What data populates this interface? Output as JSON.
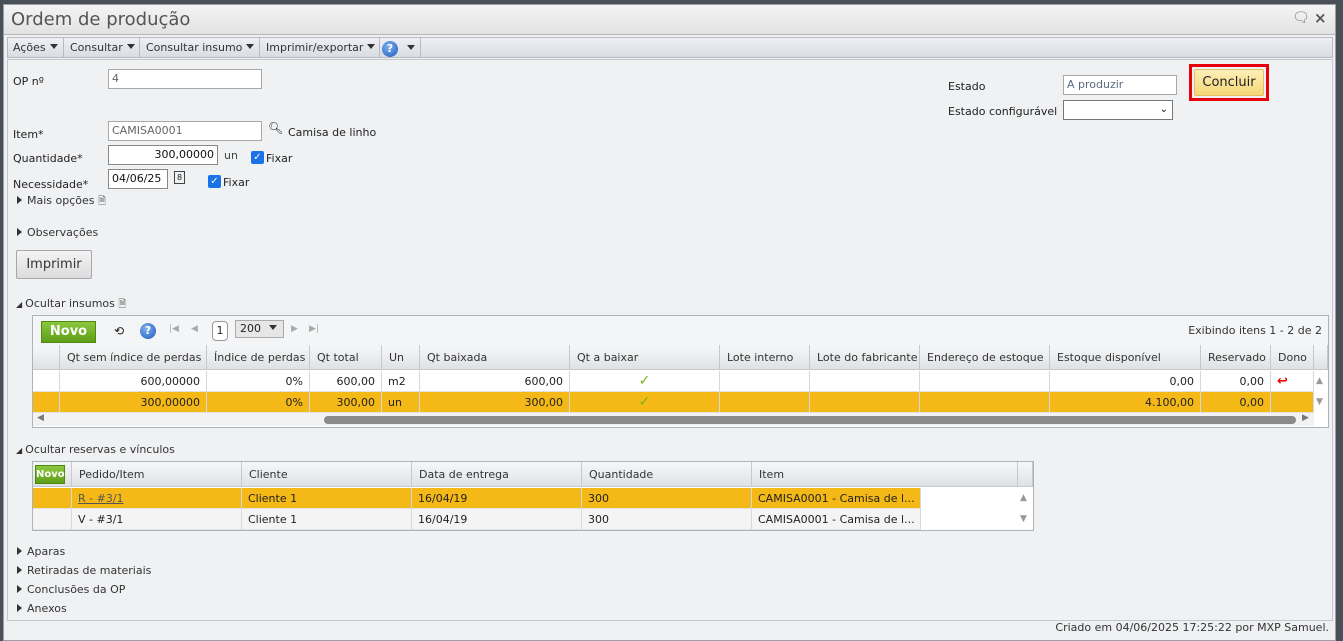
{
  "window": {
    "title": "Ordem de produção"
  },
  "menu": [
    "Ações",
    "Consultar",
    "Consultar insumo",
    "Imprimir/exportar"
  ],
  "form": {
    "op_label": "OP nº",
    "op_value": "4",
    "item_label": "Item*",
    "item_value": "CAMISA0001",
    "item_desc": "Camisa de linho",
    "qty_label": "Quantidade*",
    "qty_value": "300,00000",
    "qty_unit": "un",
    "fix1": "Fixar",
    "need_label": "Necessidade*",
    "need_value": "04/06/25",
    "fix2": "Fixar",
    "more": "Mais opções",
    "obs": "Observações",
    "print": "Imprimir",
    "state_label": "Estado",
    "state_value": "A produzir",
    "cfg_label": "Estado configurável",
    "cfg_value": "",
    "conclude": "Concluir"
  },
  "insumos": {
    "section": "Ocultar insumos",
    "new": "Novo",
    "page": "1",
    "page_size": "200",
    "status": "Exibindo itens 1 - 2 de 2",
    "columns": [
      "Qt sem índice de perdas",
      "Índice de perdas",
      "Qt total",
      "Un",
      "Qt baixada",
      "Qt a baixar",
      "Lote interno",
      "Lote do fabricante",
      "Endereço de estoque",
      "Estoque disponível",
      "Reservado",
      "Dono"
    ],
    "rows": [
      [
        "600,00000",
        "0%",
        "600,00",
        "m2",
        "600,00",
        "✓",
        "",
        "",
        "",
        "0,00",
        "0,00",
        "↩"
      ],
      [
        "300,00000",
        "0%",
        "300,00",
        "un",
        "300,00",
        "✓",
        "",
        "",
        "",
        "4.100,00",
        "0,00",
        ""
      ]
    ],
    "selected_row": 1
  },
  "reservas": {
    "section": "Ocultar reservas e vínculos",
    "new": "Novo",
    "columns": [
      "Pedido/Item",
      "Cliente",
      "Data de entrega",
      "Quantidade",
      "Item"
    ],
    "rows": [
      [
        "R - #3/1",
        "Cliente 1",
        "16/04/19",
        "300",
        "CAMISA0001 - Camisa de l..."
      ],
      [
        "V - #3/1",
        "Cliente 1",
        "16/04/19",
        "300",
        "CAMISA0001 - Camisa de l..."
      ]
    ],
    "selected_row": 0
  },
  "sections": [
    "Aparas",
    "Retiradas de materiais",
    "Conclusões da OP",
    "Anexos"
  ],
  "footer": "Criado em 04/06/2025 17:25:22 por MXP Samuel.",
  "colors": {
    "selected": "#f4b916",
    "highlight_border": "#e8000b",
    "novo": "#6aaa1e"
  }
}
